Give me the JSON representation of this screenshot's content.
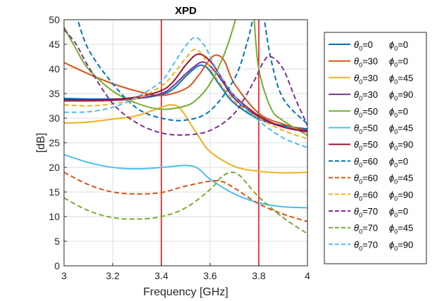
{
  "chart_data": {
    "type": "line",
    "title": "XPD",
    "xlabel": "Frequency [GHz]",
    "ylabel": "[dB]",
    "xlim": [
      3,
      4
    ],
    "ylim": [
      0,
      50
    ],
    "xticks": [
      "3",
      "3.2",
      "3.4",
      "3.6",
      "3.8",
      "4"
    ],
    "yticks": [
      "0",
      "5",
      "10",
      "15",
      "20",
      "25",
      "30",
      "35",
      "40",
      "45",
      "50"
    ],
    "grid": true,
    "legend_position": "outside-right",
    "vlines": [
      {
        "x": 3.4,
        "color": "#ff0000"
      },
      {
        "x": 3.8,
        "color": "#ff0000"
      }
    ],
    "series": [
      {
        "theta": "=0",
        "phi": "=0",
        "color": "#0072bd",
        "dash": "solid",
        "x": [
          3,
          3.1,
          3.2,
          3.3,
          3.4,
          3.45,
          3.5,
          3.55,
          3.58,
          3.6,
          3.65,
          3.7,
          3.8,
          3.9,
          4
        ],
        "y": [
          34,
          33.9,
          33.9,
          34,
          34.8,
          36,
          38.5,
          40.6,
          40.5,
          39.5,
          36,
          33,
          29.8,
          28.5,
          27.8
        ]
      },
      {
        "theta": "=30",
        "phi": "=0",
        "color": "#d95319",
        "dash": "solid",
        "x": [
          3,
          3.1,
          3.2,
          3.3,
          3.4,
          3.5,
          3.55,
          3.6,
          3.63,
          3.66,
          3.7,
          3.8,
          3.9,
          4
        ],
        "y": [
          41.3,
          39,
          37,
          35.5,
          34.6,
          36,
          38.5,
          42,
          42.8,
          41.5,
          37,
          31,
          28.8,
          27.5
        ]
      },
      {
        "theta": "=30",
        "phi": "=45",
        "color": "#edb120",
        "dash": "solid",
        "x": [
          3,
          3.1,
          3.2,
          3.3,
          3.4,
          3.44,
          3.48,
          3.55,
          3.6,
          3.7,
          3.8,
          3.9,
          4
        ],
        "y": [
          29,
          29.2,
          29.8,
          30.5,
          32.2,
          32.7,
          31.8,
          26.5,
          23.2,
          20.2,
          19.2,
          18.9,
          19
        ]
      },
      {
        "theta": "=30",
        "phi": "=90",
        "color": "#7e2f8e",
        "dash": "solid",
        "x": [
          3,
          3.1,
          3.2,
          3.3,
          3.4,
          3.45,
          3.5,
          3.56,
          3.6,
          3.65,
          3.7,
          3.8,
          3.9,
          4
        ],
        "y": [
          33.5,
          33.5,
          33.6,
          34,
          35,
          36.6,
          39,
          41.3,
          40.6,
          37.5,
          34,
          30.2,
          28.2,
          27.5
        ]
      },
      {
        "theta": "=50",
        "phi": "=0",
        "color": "#77ac30",
        "dash": "solid",
        "x": [
          3,
          3.05,
          3.1,
          3.2,
          3.3,
          3.4,
          3.5,
          3.55,
          3.6,
          3.65,
          3.68,
          3.71
        ],
        "y": [
          48.5,
          44,
          40,
          35.5,
          33,
          31.8,
          32.5,
          34,
          37,
          42,
          46,
          51
        ]
      },
      {
        "theta": "=50",
        "phi": "=0",
        "color": "#77ac30",
        "dash": "solid",
        "x": [
          3.78,
          3.8,
          3.85,
          3.9,
          4
        ],
        "y": [
          51,
          40,
          32,
          29.5,
          26.5
        ]
      },
      {
        "theta": "=50",
        "phi": "=45",
        "color": "#4dbeee",
        "dash": "solid",
        "x": [
          3,
          3.1,
          3.2,
          3.3,
          3.4,
          3.5,
          3.55,
          3.6,
          3.7,
          3.8,
          3.9,
          4
        ],
        "y": [
          22.6,
          21,
          20,
          19.7,
          20,
          20.4,
          19.8,
          17.6,
          14.6,
          12.8,
          12,
          11.8
        ]
      },
      {
        "theta": "=50",
        "phi": "=90",
        "color": "#a2142f",
        "dash": "solid",
        "x": [
          3,
          3.1,
          3.2,
          3.3,
          3.4,
          3.45,
          3.5,
          3.55,
          3.6,
          3.65,
          3.7,
          3.8,
          3.9,
          4
        ],
        "y": [
          33.8,
          33.7,
          33.8,
          34.3,
          35.6,
          37.5,
          40.8,
          43,
          41.6,
          38,
          34.5,
          30.5,
          28.2,
          27.2
        ]
      },
      {
        "theta": "=60",
        "phi": "=0",
        "color": "#0072bd",
        "dash": "dashed",
        "x": [
          3.05,
          3.1,
          3.2,
          3.3,
          3.4,
          3.5,
          3.6,
          3.7,
          3.75,
          3.78
        ],
        "y": [
          51,
          44,
          37,
          32,
          30,
          29.6,
          31.5,
          38,
          45,
          51
        ]
      },
      {
        "theta": "=60",
        "phi": "=0",
        "color": "#0072bd",
        "dash": "dashed",
        "x": [
          3.82,
          3.85,
          3.9,
          4
        ],
        "y": [
          51,
          42,
          34,
          28.8
        ]
      },
      {
        "theta": "=60",
        "phi": "=45",
        "color": "#d95319",
        "dash": "dashed",
        "x": [
          3,
          3.1,
          3.2,
          3.3,
          3.4,
          3.5,
          3.6,
          3.65,
          3.7,
          3.8,
          3.9,
          4
        ],
        "y": [
          19,
          16.5,
          15,
          14.6,
          14.9,
          16.2,
          17.2,
          17.1,
          15.8,
          12.6,
          10.5,
          9
        ]
      },
      {
        "theta": "=60",
        "phi": "=90",
        "color": "#edb120",
        "dash": "dashed",
        "x": [
          3,
          3.1,
          3.2,
          3.3,
          3.4,
          3.45,
          3.5,
          3.54,
          3.58,
          3.62,
          3.7,
          3.8,
          3.9,
          4
        ],
        "y": [
          32.7,
          32.5,
          32.9,
          34,
          36.5,
          39,
          42.2,
          44,
          42,
          38.5,
          33.5,
          30,
          27.5,
          25.8
        ]
      },
      {
        "theta": "=70",
        "phi": "=0",
        "color": "#7e2f8e",
        "dash": "dashed",
        "x": [
          3,
          3.05,
          3.1,
          3.2,
          3.3,
          3.4,
          3.5,
          3.6,
          3.7,
          3.78,
          3.82,
          3.85,
          3.9,
          3.95,
          4
        ],
        "y": [
          48,
          45,
          40.5,
          33,
          29,
          27,
          26.6,
          27.5,
          31,
          37.5,
          41.5,
          42.5,
          40,
          34,
          28.5
        ]
      },
      {
        "theta": "=70",
        "phi": "=45",
        "color": "#77ac30",
        "dash": "dashed",
        "x": [
          3,
          3.1,
          3.2,
          3.3,
          3.4,
          3.5,
          3.6,
          3.65,
          3.69,
          3.72,
          3.75,
          3.8,
          3.9,
          4
        ],
        "y": [
          13.8,
          11.2,
          9.8,
          9.5,
          10,
          11.8,
          15.5,
          18.2,
          19,
          18.4,
          16.8,
          14,
          9.8,
          6.5
        ]
      },
      {
        "theta": "=70",
        "phi": "=90",
        "color": "#4dbeee",
        "dash": "dashed",
        "x": [
          3,
          3.1,
          3.2,
          3.3,
          3.4,
          3.45,
          3.5,
          3.54,
          3.58,
          3.62,
          3.7,
          3.8,
          3.9,
          4
        ],
        "y": [
          31.2,
          31.3,
          32.2,
          34.3,
          37.5,
          41,
          44.7,
          46.4,
          44.5,
          40.5,
          34.5,
          29.5,
          26,
          24
        ]
      }
    ]
  }
}
